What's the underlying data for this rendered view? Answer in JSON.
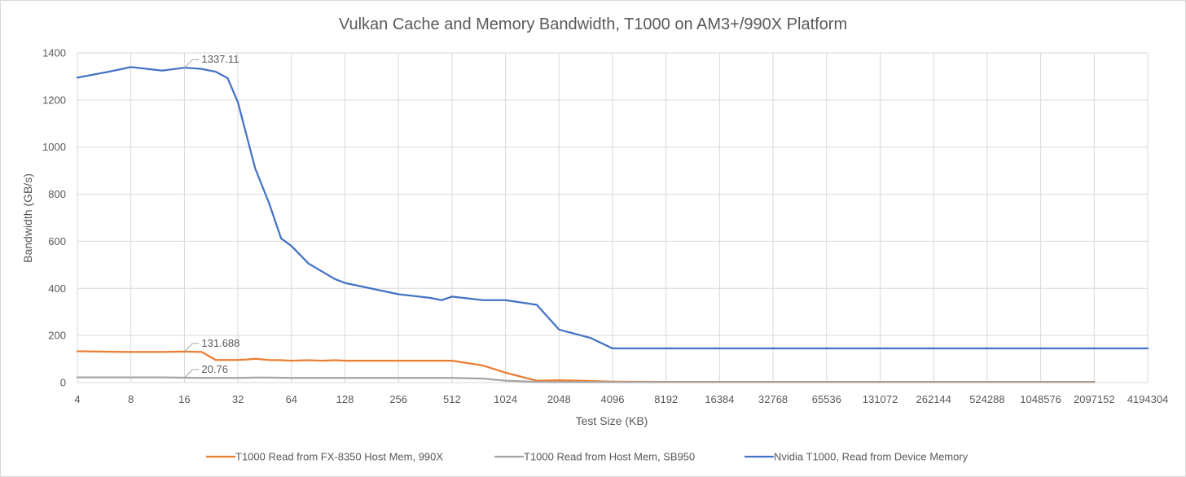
{
  "chart_data": {
    "type": "line",
    "title": "Vulkan Cache and Memory Bandwidth, T1000 on AM3+/990X Platform",
    "xlabel": "Test Size (KB)",
    "ylabel": "Bandwidth (GB/s)",
    "x_scale": "log2",
    "xlim": [
      4,
      4194304
    ],
    "ylim": [
      0,
      1400
    ],
    "y_ticks": [
      0,
      200,
      400,
      600,
      800,
      1000,
      1200,
      1400
    ],
    "x_ticks": [
      "4",
      "8",
      "16",
      "32",
      "64",
      "128",
      "256",
      "512",
      "1024",
      "2048",
      "4096",
      "8192",
      "16384",
      "32768",
      "65536",
      "131072",
      "262144",
      "524288",
      "1048576",
      "2097152",
      "4194304"
    ],
    "grid": true,
    "legend_position": "bottom",
    "series": [
      {
        "name": "T1000 Read from FX-8350 Host Mem, 990X",
        "color": "#ED7D31",
        "x": [
          4,
          6,
          8,
          12,
          16,
          20,
          24,
          32,
          36,
          40,
          48,
          56,
          64,
          80,
          96,
          112,
          128,
          192,
          256,
          384,
          512,
          768,
          1024,
          1536,
          2048,
          3072,
          4096,
          8192,
          16384,
          32768,
          65536,
          131072,
          262144,
          524288,
          1048576,
          2097152
        ],
        "y": [
          133,
          131,
          130,
          130,
          131.688,
          130,
          96,
          96,
          98,
          101,
          96,
          95,
          93,
          95,
          93,
          95,
          93,
          93,
          93,
          93,
          93,
          72,
          42,
          8,
          10,
          7,
          4,
          3,
          3,
          3,
          3,
          3,
          3,
          3,
          3,
          3
        ]
      },
      {
        "name": "T1000 Read from Host Mem, SB950",
        "color": "#A5A5A5",
        "x": [
          4,
          6,
          8,
          12,
          16,
          20,
          24,
          32,
          40,
          48,
          64,
          96,
          128,
          256,
          512,
          768,
          1024,
          1536,
          2048,
          4096,
          8192,
          16384,
          32768,
          65536,
          131072,
          262144,
          524288,
          1048576,
          2097152
        ],
        "y": [
          22,
          22,
          22,
          22,
          20.76,
          20,
          20,
          20,
          21,
          21,
          20,
          20,
          20,
          20,
          20,
          17,
          8,
          3,
          2,
          2,
          2,
          2,
          2,
          2,
          2,
          2,
          2,
          2,
          2
        ]
      },
      {
        "name": "Nvidia T1000, Read from Device Memory",
        "color": "#4472C4",
        "x": [
          4,
          6,
          8,
          12,
          16,
          20,
          24,
          28,
          32,
          40,
          48,
          56,
          64,
          80,
          96,
          112,
          128,
          192,
          256,
          384,
          448,
          512,
          768,
          1024,
          1536,
          2048,
          3072,
          4096,
          8192,
          16384,
          32768,
          65536,
          131072,
          262144,
          524288,
          1048576,
          2097152,
          4194304
        ],
        "y": [
          1295,
          1320,
          1340,
          1325,
          1337.11,
          1332,
          1320,
          1293,
          1190,
          910,
          760,
          612,
          580,
          505,
          470,
          440,
          423,
          395,
          375,
          360,
          350,
          365,
          350,
          350,
          330,
          225,
          190,
          145,
          145,
          145,
          145,
          145,
          145,
          145,
          145,
          145,
          145,
          145
        ]
      }
    ],
    "annotations": [
      {
        "text": "1337.11",
        "series": 2,
        "x": 16,
        "y": 1337.11
      },
      {
        "text": "131.688",
        "series": 0,
        "x": 16,
        "y": 131.688
      },
      {
        "text": "20.76",
        "series": 1,
        "x": 16,
        "y": 20.76
      }
    ]
  }
}
